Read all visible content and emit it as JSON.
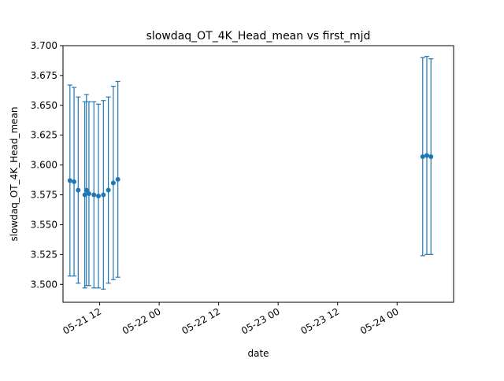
{
  "chart_data": {
    "type": "scatter",
    "title": "slowdaq_OT_4K_Head_mean vs first_mjd",
    "xlabel": "date",
    "ylabel": "slowdaq_OT_4K_Head_mean",
    "x_axis_type": "date",
    "xlim": [
      "2024-05-21T04:36",
      "2024-05-24T11:24"
    ],
    "ylim": [
      3.485,
      3.7
    ],
    "x_tick_values": [
      "2024-05-21T12:00",
      "2024-05-22T00:00",
      "2024-05-22T12:00",
      "2024-05-23T00:00",
      "2024-05-23T12:00",
      "2024-05-24T00:00"
    ],
    "x_tick_labels": [
      "05-21 12",
      "05-22 00",
      "05-22 12",
      "05-23 00",
      "05-23 12",
      "05-24 00"
    ],
    "y_ticks": [
      "3.500",
      "3.525",
      "3.550",
      "3.575",
      "3.600",
      "3.625",
      "3.650",
      "3.675",
      "3.700"
    ],
    "grid": false,
    "legend": "none",
    "series": [
      {
        "color": "#1f77b4",
        "marker": "circle",
        "error_bars": true,
        "points": [
          {
            "x": "2024-05-21T06:00",
            "y": 3.587,
            "err": 0.08
          },
          {
            "x": "2024-05-21T06:50",
            "y": 3.586,
            "err": 0.079
          },
          {
            "x": "2024-05-21T07:40",
            "y": 3.579,
            "err": 0.078
          },
          {
            "x": "2024-05-21T09:00",
            "y": 3.575,
            "err": 0.078
          },
          {
            "x": "2024-05-21T09:20",
            "y": 3.579,
            "err": 0.08
          },
          {
            "x": "2024-05-21T09:50",
            "y": 3.576,
            "err": 0.077
          },
          {
            "x": "2024-05-21T10:50",
            "y": 3.575,
            "err": 0.078
          },
          {
            "x": "2024-05-21T11:45",
            "y": 3.574,
            "err": 0.077
          },
          {
            "x": "2024-05-21T12:45",
            "y": 3.575,
            "err": 0.079
          },
          {
            "x": "2024-05-21T13:45",
            "y": 3.579,
            "err": 0.078
          },
          {
            "x": "2024-05-21T14:45",
            "y": 3.585,
            "err": 0.081
          },
          {
            "x": "2024-05-21T15:40",
            "y": 3.588,
            "err": 0.082
          },
          {
            "x": "2024-05-24T05:10",
            "y": 3.607,
            "err": 0.083
          },
          {
            "x": "2024-05-24T06:00",
            "y": 3.608,
            "err": 0.083
          },
          {
            "x": "2024-05-24T06:50",
            "y": 3.607,
            "err": 0.082
          }
        ]
      }
    ]
  }
}
